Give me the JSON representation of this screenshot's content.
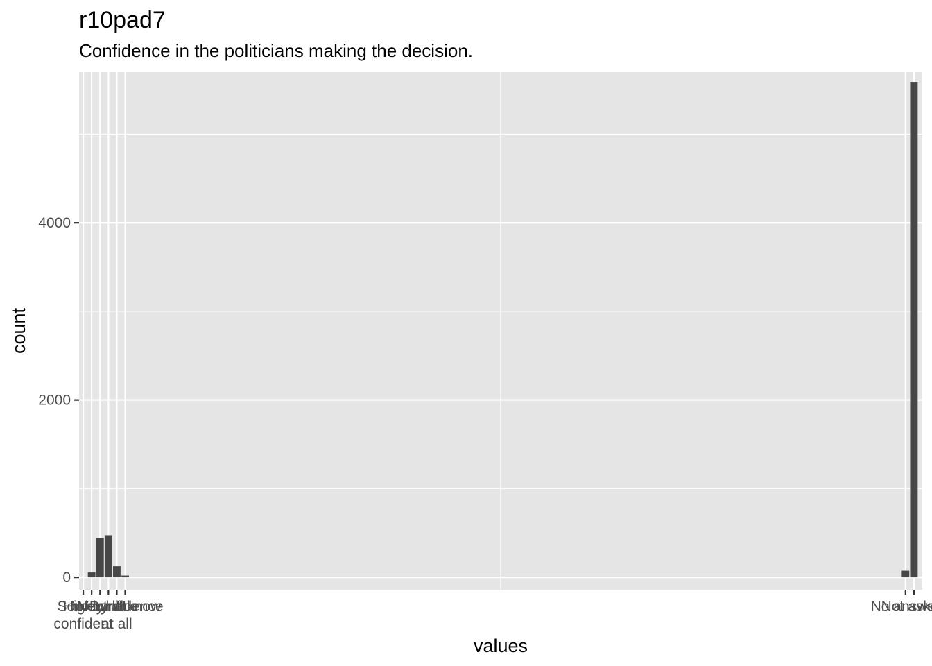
{
  "chart_data": {
    "type": "bar",
    "title": "r10pad7",
    "subtitle": "Confidence in the politicians making the decision.",
    "xlabel": "values",
    "ylabel": "count",
    "ylim": [
      -140,
      5700
    ],
    "y_ticks": [
      0,
      2000,
      4000
    ],
    "y_tick_labels": [
      "0",
      "2000",
      "4000"
    ],
    "xlim": [
      -0.5,
      100
    ],
    "grid": true,
    "bars": [
      {
        "x": 1,
        "value": 55
      },
      {
        "x": 2,
        "value": 440
      },
      {
        "x": 3,
        "value": 475
      },
      {
        "x": 4,
        "value": 125
      },
      {
        "x": 5,
        "value": 20
      },
      {
        "x": 98,
        "value": 75
      },
      {
        "x": 99,
        "value": 5590
      }
    ],
    "x_ticks": [
      {
        "x": 0,
        "label": "Highly\nconfident"
      },
      {
        "x": 1,
        "label": "Somewhat"
      },
      {
        "x": 2,
        "label": "Neutral"
      },
      {
        "x": 3,
        "label": "Very little"
      },
      {
        "x": 4,
        "label": "No confidence\nat all"
      },
      {
        "x": 5,
        "label": "Don't know"
      },
      {
        "x": 98,
        "label": "No answer"
      },
      {
        "x": 99,
        "label": "Not asked"
      }
    ],
    "colors": {
      "panel": "#e5e5e5",
      "grid": "#ffffff",
      "bar": "#474747",
      "tick": "#333333",
      "tick_label": "#4d4d4d"
    }
  }
}
